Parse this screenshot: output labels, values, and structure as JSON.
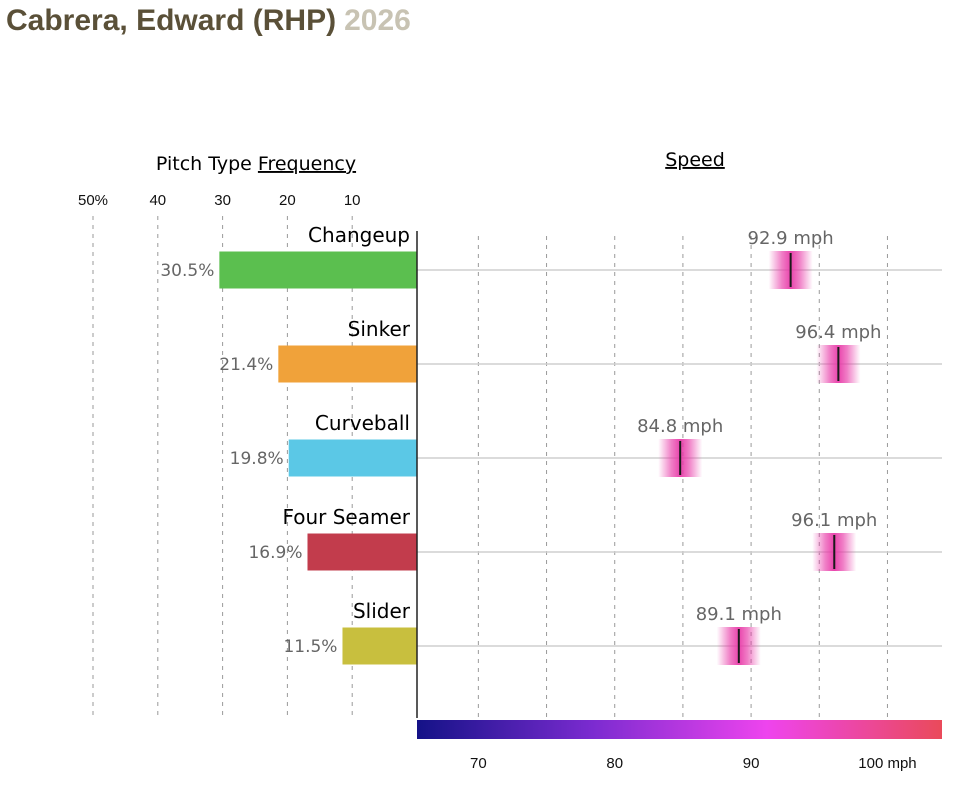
{
  "title": {
    "name": "Cabrera, Edward (RHP)",
    "year": "2026"
  },
  "frequency_header": {
    "prefix": "Pitch Type ",
    "underlined": "Frequency"
  },
  "speed_header": "Speed",
  "colors": {
    "title": "#5a5038",
    "year": "#c8c3b3",
    "gradient": [
      "#141287",
      "#7b2bd0",
      "#ee44ee",
      "#ea4a5a"
    ],
    "speed_marker": "#e83aa8"
  },
  "chart_data": [
    {
      "type": "bar",
      "title": "Pitch Type Frequency",
      "orientation": "horizontal",
      "direction": "right-to-left",
      "categories": [
        "Changeup",
        "Sinker",
        "Curveball",
        "Four Seamer",
        "Slider"
      ],
      "values": [
        30.5,
        21.4,
        19.8,
        16.9,
        11.5
      ],
      "value_labels": [
        "30.5%",
        "21.4%",
        "19.8%",
        "16.9%",
        "11.5%"
      ],
      "colors": [
        "#5bbf4f",
        "#f0a23a",
        "#5bc8e6",
        "#c23c4c",
        "#c8bf3e"
      ],
      "xlim": [
        0,
        50
      ],
      "ticks": [
        50,
        40,
        30,
        20,
        10
      ],
      "tick_labels": [
        "50%",
        "40",
        "30",
        "20",
        "10"
      ],
      "grid": true
    },
    {
      "type": "scatter",
      "title": "Speed",
      "categories": [
        "Changeup",
        "Sinker",
        "Curveball",
        "Four Seamer",
        "Slider"
      ],
      "values": [
        92.9,
        96.4,
        84.8,
        96.1,
        89.1
      ],
      "value_labels": [
        "92.9 mph",
        "96.4 mph",
        "84.8 mph",
        "96.1 mph",
        "89.1 mph"
      ],
      "xlim": [
        65.5,
        104
      ],
      "ticks": [
        70,
        80,
        90,
        100
      ],
      "tick_labels": [
        "70",
        "80",
        "90",
        "100 mph"
      ],
      "grid": true
    }
  ]
}
